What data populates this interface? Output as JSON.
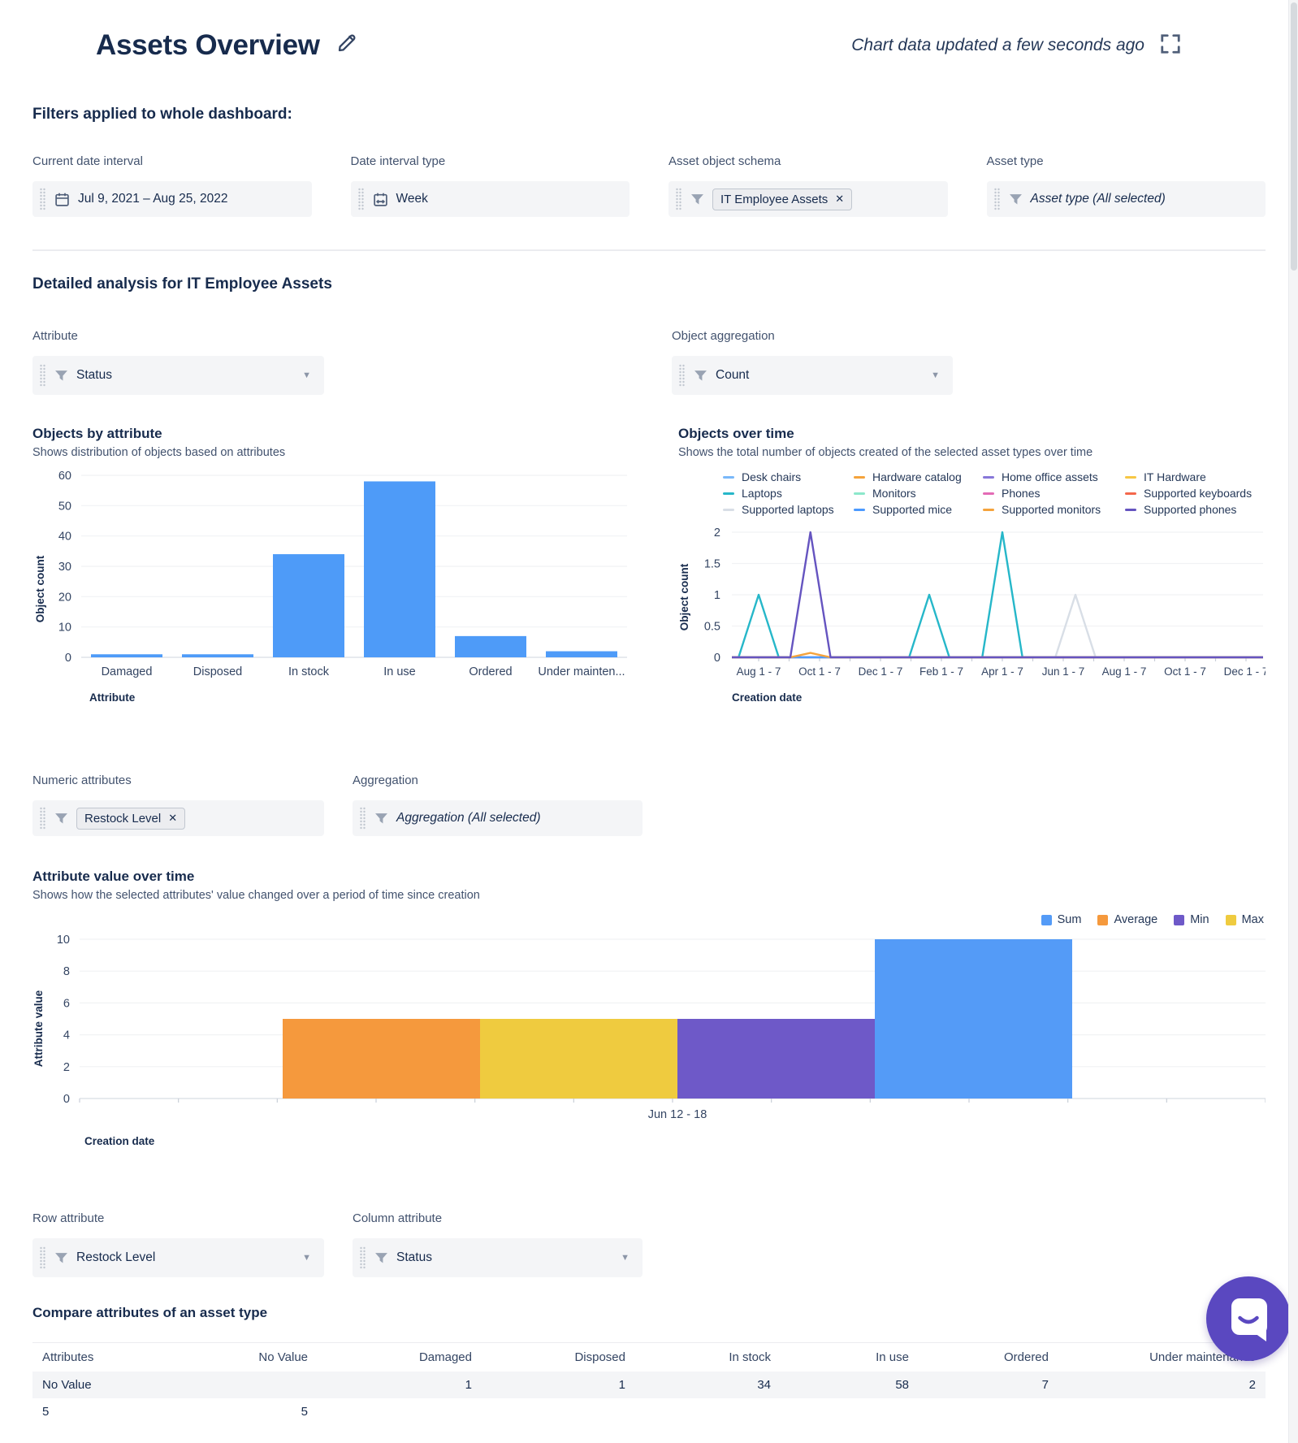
{
  "header": {
    "title": "Assets Overview",
    "updated": "Chart data updated a few seconds ago"
  },
  "filters": {
    "heading": "Filters applied to whole dashboard:",
    "date_interval": {
      "label": "Current date interval",
      "value": "Jul 9, 2021 – Aug 25, 2022"
    },
    "interval_type": {
      "label": "Date interval type",
      "value": "Week"
    },
    "object_schema": {
      "label": "Asset object schema",
      "chip": "IT Employee Assets",
      "remove_icon": "✕"
    },
    "asset_type": {
      "label": "Asset type",
      "placeholder": "Asset type (All selected)"
    }
  },
  "section": {
    "heading": "Detailed analysis for IT Employee Assets"
  },
  "attribute_control": {
    "label": "Attribute",
    "value": "Status"
  },
  "aggregation_control": {
    "label": "Object aggregation",
    "value": "Count"
  },
  "numeric_attributes": {
    "label": "Numeric attributes",
    "chip": "Restock Level",
    "remove_icon": "✕"
  },
  "aggregation_filter": {
    "label": "Aggregation",
    "placeholder": "Aggregation (All selected)"
  },
  "row_attribute": {
    "label": "Row attribute",
    "value": "Restock Level"
  },
  "column_attribute": {
    "label": "Column attribute",
    "value": "Status"
  },
  "table": {
    "heading": "Compare attributes of an asset type",
    "columns": [
      "Attributes",
      "No Value",
      "Damaged",
      "Disposed",
      "In stock",
      "In use",
      "Ordered",
      "Under maintenance"
    ],
    "rows": [
      [
        "No Value",
        "",
        "1",
        "1",
        "34",
        "58",
        "7",
        "2"
      ],
      [
        "5",
        "5",
        "",
        "",
        "",
        "",
        "",
        ""
      ]
    ]
  },
  "chart_data": [
    {
      "type": "bar",
      "title": "Objects by attribute",
      "subtitle": "Shows distribution of objects based on attributes",
      "categories": [
        "Damaged",
        "Disposed",
        "In stock",
        "In use",
        "Ordered",
        "Under mainten..."
      ],
      "values": [
        1,
        1,
        34,
        58,
        7,
        2
      ],
      "xlabel": "Attribute",
      "ylabel": "Object count",
      "ylim": [
        0,
        60
      ],
      "yticks": [
        0,
        10,
        20,
        30,
        40,
        50,
        60
      ],
      "bar_color": "#4E9BF8",
      "grid": true
    },
    {
      "type": "line",
      "title": "Objects over time",
      "subtitle": "Shows the total number of objects created of the selected asset types over time",
      "xlabel": "Creation date",
      "ylabel": "Object count",
      "ylim": [
        0,
        2
      ],
      "yticks": [
        0,
        0.5,
        1,
        1.5,
        2
      ],
      "xticklabels": [
        "Aug 1 - 7",
        "Oct 1 - 7",
        "Dec 1 - 7",
        "Feb 1 - 7",
        "Apr 1 - 7",
        "Jun 1 - 7",
        "Aug 1 - 7",
        "Oct 1 - 7",
        "Dec 1 - 7"
      ],
      "legend_position": "top",
      "grid": true,
      "spike_halfwidth": 0.33,
      "series": [
        {
          "name": "Desk chairs",
          "color": "#79B8F9",
          "spikes": []
        },
        {
          "name": "Hardware catalog",
          "color": "#F5A33C",
          "spikes": []
        },
        {
          "name": "Home office assets",
          "color": "#8777D9",
          "spikes": []
        },
        {
          "name": "IT Hardware",
          "color": "#F7C744",
          "spikes": []
        },
        {
          "name": "Laptops",
          "color": "#26B7C9",
          "spikes": [
            {
              "x": 0,
              "y": 1
            },
            {
              "x": 2.8,
              "y": 1
            },
            {
              "x": 4,
              "y": 2
            }
          ]
        },
        {
          "name": "Monitors",
          "color": "#8CE8CB",
          "spikes": []
        },
        {
          "name": "Phones",
          "color": "#E36BB5",
          "spikes": []
        },
        {
          "name": "Supported keyboards",
          "color": "#F4674B",
          "spikes": []
        },
        {
          "name": "Supported laptops",
          "color": "#D8DEE6",
          "spikes": [
            {
              "x": 5.2,
              "y": 1
            }
          ]
        },
        {
          "name": "Supported mice",
          "color": "#4C9AFF",
          "spikes": []
        },
        {
          "name": "Supported monitors",
          "color": "#F5A33C",
          "spikes": [
            {
              "x": 0.85,
              "y": 0.07
            }
          ]
        },
        {
          "name": "Supported phones",
          "color": "#6554C0",
          "spikes": [
            {
              "x": 0.85,
              "y": 2
            }
          ]
        }
      ]
    },
    {
      "type": "bar",
      "title": "Attribute value over time",
      "subtitle": "Shows how the selected attributes' value changed over a period of time since creation",
      "categories": [
        "Jun 12 - 18"
      ],
      "series": [
        {
          "name": "Sum",
          "color": "#549BF7",
          "values": [
            10
          ]
        },
        {
          "name": "Average",
          "color": "#F5993D",
          "values": [
            5
          ]
        },
        {
          "name": "Min",
          "color": "#6E59C8",
          "values": [
            5
          ]
        },
        {
          "name": "Max",
          "color": "#EFCB3F",
          "values": [
            5
          ]
        }
      ],
      "bar_draw_order": [
        "Average",
        "Max",
        "Min",
        "Sum"
      ],
      "xlabel": "Creation date",
      "ylabel": "Attribute value",
      "ylim": [
        0,
        10
      ],
      "yticks": [
        0,
        2,
        4,
        6,
        8,
        10
      ],
      "legend_position": "top-right",
      "grid": true
    }
  ],
  "colors": {
    "text_primary": "#172B4D",
    "text_secondary": "#42526E",
    "field_bg": "#F4F5F7",
    "chip_bg": "#ECEDF0",
    "chip_border": "#C1C7D0",
    "gridline": "#F1F2F4",
    "axis_line": "#DFE3E8",
    "bar_blue": "#4E9BF8",
    "chat_bubble": "#5A48C0",
    "icon_gray": "#99A3B3"
  }
}
